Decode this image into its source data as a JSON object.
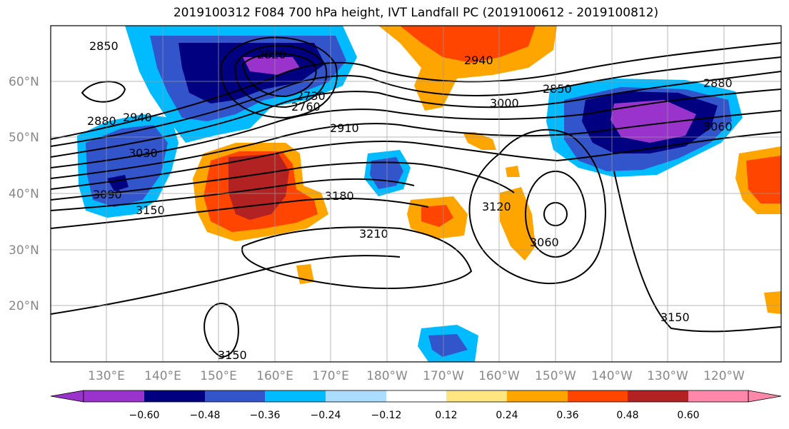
{
  "title": "2019100312 F084 700 hPa height, IVT Landfall PC (2019100612 - 2019100812)",
  "lat_labels": [
    "60°N",
    "50°N",
    "40°N",
    "30°N",
    "20°N"
  ],
  "lon_labels": [
    "130°E",
    "140°E",
    "150°E",
    "160°E",
    "170°E",
    "180°W",
    "170°W",
    "160°W",
    "150°W",
    "140°W",
    "130°W",
    "120°W"
  ],
  "colorbar": {
    "colors": [
      "#9933CC",
      "#000080",
      "#3355CC",
      "#00BBFF",
      "#AADDFF",
      "#FFFFFF",
      "#FFE680",
      "#FFA500",
      "#FF4500",
      "#B22222",
      "#FF88AA"
    ],
    "tick_labels": [
      "−0.60",
      "−0.48",
      "−0.36",
      "−0.24",
      "−0.12",
      "0.12",
      "0.24",
      "0.36",
      "0.48",
      "0.60"
    ]
  },
  "contour_labels": [
    "2850",
    "2820",
    "2880",
    "2940",
    "3030",
    "3090",
    "3150",
    "3180",
    "3210",
    "2910",
    "3000",
    "2940",
    "2850",
    "2880",
    "3060",
    "3120",
    "3060",
    "3150",
    "3150",
    "2760",
    "2730"
  ]
}
